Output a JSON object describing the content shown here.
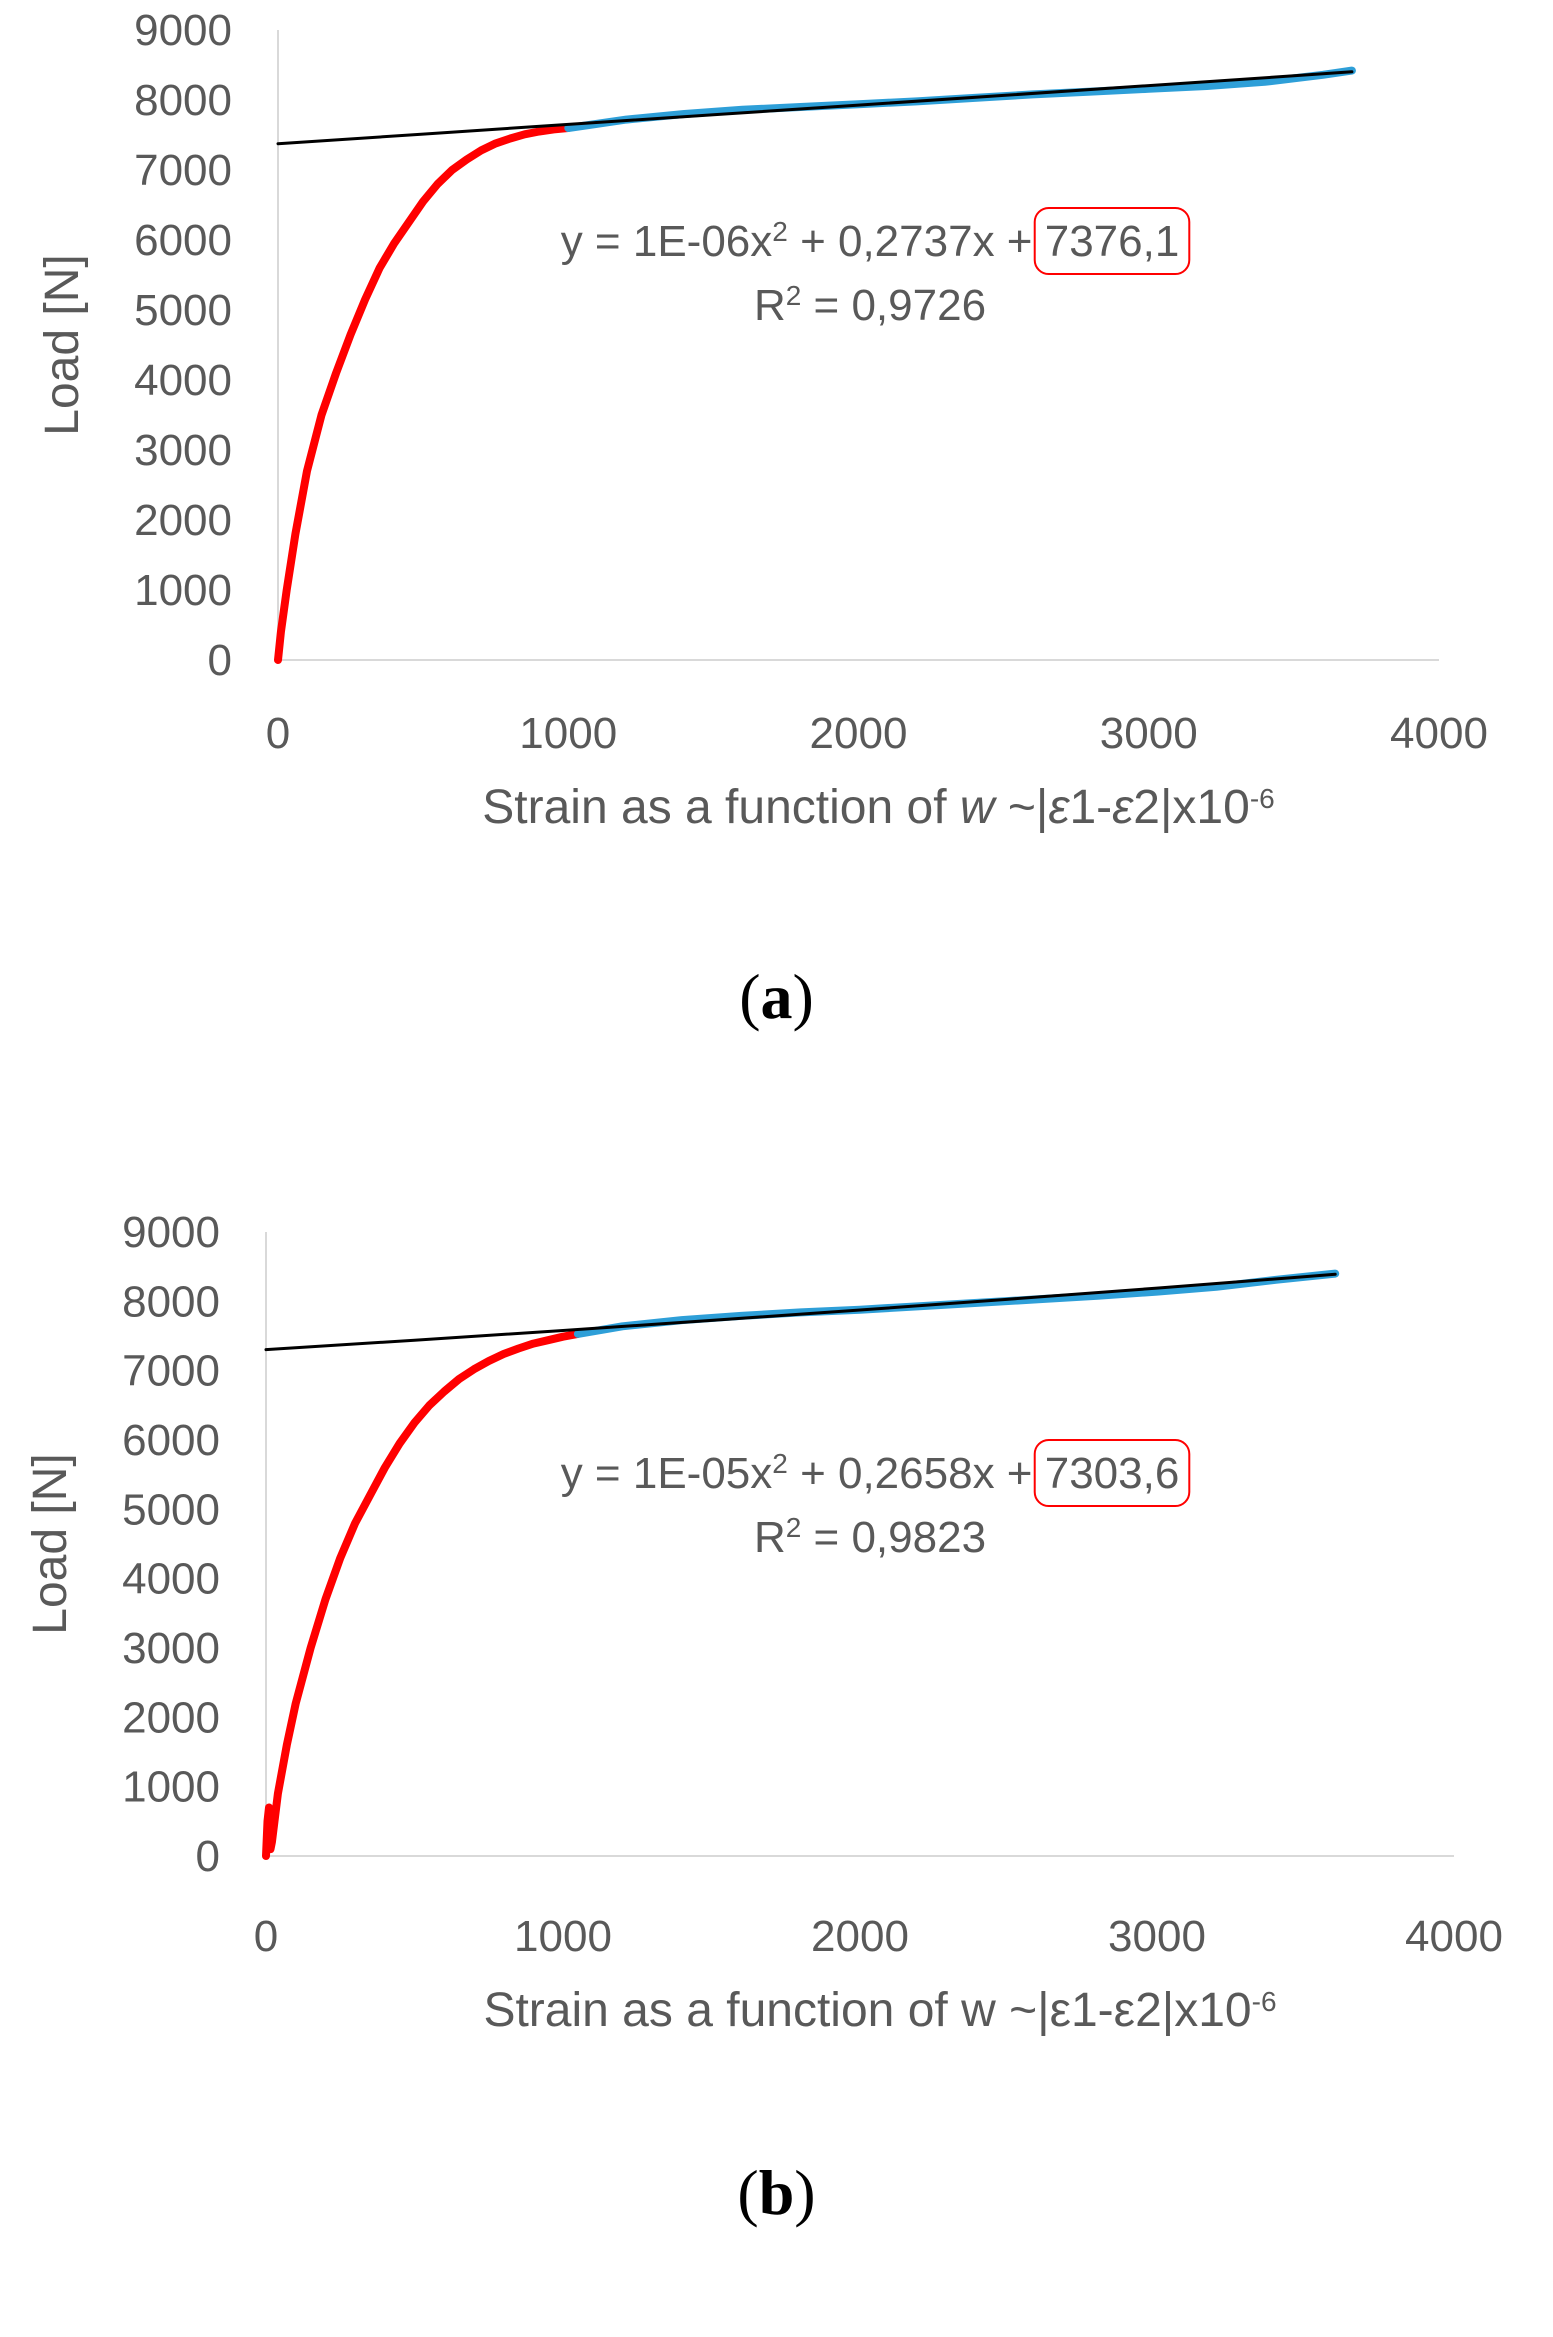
{
  "chart_data": [
    {
      "type": "line",
      "caption": "a",
      "xlabel_parts": [
        "Strain as a function of ",
        "w",
        " ~|",
        "ε",
        "1-",
        "ε",
        "2|x10",
        "-6"
      ],
      "ylabel": "Load [N]",
      "xlim": [
        0,
        4000
      ],
      "ylim": [
        0,
        9000
      ],
      "xticks": [
        "0",
        "1000",
        "2000",
        "3000",
        "4000"
      ],
      "yticks": [
        "0",
        "1000",
        "2000",
        "3000",
        "4000",
        "5000",
        "6000",
        "7000",
        "8000",
        "9000"
      ],
      "grid": false,
      "equation": {
        "line1_prefix": "y = 1E-06x",
        "line1_sup": "2",
        "line1_mid": " + 0,2737x + ",
        "line1_boxed": "7376,1",
        "line2_prefix": "R",
        "line2_sup": "2",
        "line2_rest": " = 0,9726"
      },
      "series": [
        {
          "color": "#ff0000",
          "x": [
            0,
            10,
            30,
            60,
            100,
            150,
            200,
            250,
            300,
            350,
            400,
            450,
            500,
            550,
            600,
            650,
            700,
            750,
            800,
            850,
            900,
            950,
            1000
          ],
          "y": [
            0,
            400,
            1000,
            1800,
            2700,
            3500,
            4100,
            4650,
            5150,
            5600,
            5950,
            6250,
            6550,
            6800,
            7000,
            7150,
            7280,
            7380,
            7450,
            7510,
            7550,
            7580,
            7600
          ]
        },
        {
          "color": "#2e9fd8",
          "x": [
            1000,
            1200,
            1400,
            1600,
            1800,
            2000,
            2200,
            2400,
            2600,
            2800,
            3000,
            3200,
            3400,
            3600,
            3700
          ],
          "y": [
            7600,
            7720,
            7800,
            7860,
            7900,
            7940,
            7980,
            8030,
            8080,
            8120,
            8160,
            8200,
            8260,
            8360,
            8420
          ]
        },
        {
          "color": "#000000",
          "trendline": true,
          "x": [
            0,
            500,
            1000,
            1500,
            2000,
            2500,
            3000,
            3500,
            3700
          ],
          "y": [
            7376.1,
            7513.2,
            7650.8,
            7789,
            7927.5,
            8066.4,
            8206.1,
            8346.2,
            8402.2
          ]
        }
      ]
    },
    {
      "type": "line",
      "caption": "b",
      "xlabel_parts": [
        "Strain as a function of w ~|",
        "",
        "",
        "ε",
        "1-",
        "ε",
        "2|x10",
        "-6"
      ],
      "ylabel": "Load [N]",
      "xlim": [
        0,
        4000
      ],
      "ylim": [
        0,
        9000
      ],
      "xticks": [
        "0",
        "1000",
        "2000",
        "3000",
        "4000"
      ],
      "yticks": [
        "0",
        "1000",
        "2000",
        "3000",
        "4000",
        "5000",
        "6000",
        "7000",
        "8000",
        "9000"
      ],
      "grid": false,
      "equation": {
        "line1_prefix": "y = 1E-05x",
        "line1_sup": "2",
        "line1_mid": " + 0,2658x + ",
        "line1_boxed": "7303,6",
        "line2_prefix": "R",
        "line2_sup": "2",
        "line2_rest": " = 0,9823"
      },
      "series": [
        {
          "color": "#ff0000",
          "x": [
            0,
            5,
            10,
            15,
            20,
            40,
            70,
            100,
            150,
            200,
            250,
            300,
            350,
            400,
            450,
            500,
            550,
            600,
            650,
            700,
            750,
            800,
            850,
            900,
            950,
            1000,
            1050
          ],
          "y": [
            0,
            500,
            700,
            100,
            200,
            900,
            1600,
            2200,
            3000,
            3700,
            4300,
            4800,
            5200,
            5600,
            5950,
            6250,
            6500,
            6700,
            6880,
            7020,
            7140,
            7240,
            7320,
            7390,
            7440,
            7490,
            7530
          ]
        },
        {
          "color": "#2e9fd8",
          "x": [
            1050,
            1200,
            1400,
            1600,
            1800,
            2000,
            2200,
            2400,
            2600,
            2800,
            3000,
            3200,
            3400,
            3600
          ],
          "y": [
            7530,
            7640,
            7730,
            7790,
            7840,
            7880,
            7930,
            7980,
            8030,
            8080,
            8140,
            8210,
            8310,
            8400
          ]
        },
        {
          "color": "#000000",
          "trendline": true,
          "x": [
            0,
            500,
            1000,
            1500,
            2000,
            2500,
            3000,
            3500,
            3600
          ],
          "y": [
            7303.6,
            7439,
            7579.4,
            7724.8,
            7875.2,
            8030.6,
            8191,
            8356.4,
            8389.9
          ]
        }
      ]
    }
  ]
}
